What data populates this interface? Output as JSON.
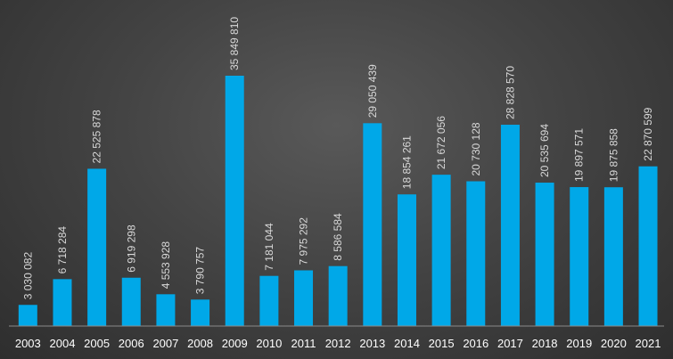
{
  "chart_data": {
    "type": "bar",
    "categories": [
      "2003",
      "2004",
      "2005",
      "2006",
      "2007",
      "2008",
      "2009",
      "2010",
      "2011",
      "2012",
      "2013",
      "2014",
      "2015",
      "2016",
      "2017",
      "2018",
      "2019",
      "2020",
      "2021"
    ],
    "values": [
      3030082,
      6718284,
      22525878,
      6919298,
      4553928,
      3790757,
      35849810,
      7181044,
      7975292,
      8586584,
      29050439,
      18854261,
      21672056,
      20730128,
      28828570,
      20535694,
      19897571,
      19875858,
      22870599
    ],
    "value_labels": [
      "3 030 082",
      "6 718 284",
      "22 525 878",
      "6 919 298",
      "4 553 928",
      "3 790 757",
      "35 849 810",
      "7 181 044",
      "7 975 292",
      "8 586 584",
      "29 050 439",
      "18 854 261",
      "21 672 056",
      "20 730 128",
      "28 828 570",
      "20 535 694",
      "19 897 571",
      "19 875 858",
      "22 870 599"
    ],
    "title": "",
    "xlabel": "",
    "ylabel": "",
    "ylim": [
      0,
      40000000
    ],
    "grid": false,
    "colors": {
      "bar": "#00a8e8",
      "label": "#d9d9d9",
      "tick": "#ffffff"
    }
  }
}
